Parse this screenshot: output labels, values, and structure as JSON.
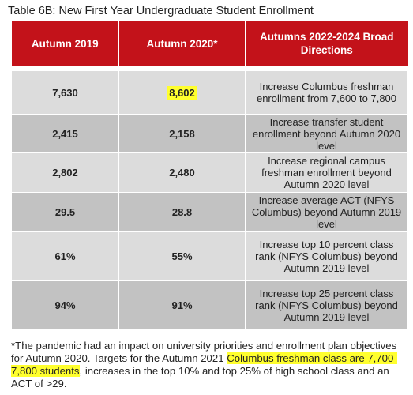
{
  "caption": "Table 6B: New First Year Undergraduate Student Enrollment",
  "table": {
    "headers": [
      "Autumn 2019",
      "Autumn 2020*",
      "Autumns 2022-2024 Broad Directions"
    ],
    "rows": [
      {
        "a2019": "7,630",
        "a2020": "8,602",
        "direction": "Increase Columbus freshman enrollment from 7,600 to 7,800"
      },
      {
        "a2019": "2,415",
        "a2020": "2,158",
        "direction": "Increase transfer student enrollment beyond Autumn 2020 level"
      },
      {
        "a2019": "2,802",
        "a2020": "2,480",
        "direction": "Increase regional campus freshman enrollment beyond Autumn 2020 level"
      },
      {
        "a2019": "29.5",
        "a2020": "28.8",
        "direction": "Increase average ACT (NFYS Columbus) beyond Autumn 2019 level"
      },
      {
        "a2019": "61%",
        "a2020": "55%",
        "direction": "Increase top 10 percent class rank (NFYS Columbus) beyond Autumn 2019 level"
      },
      {
        "a2019": "94%",
        "a2020": "91%",
        "direction": "Increase top 25 percent class rank (NFYS Columbus) beyond Autumn 2019 level"
      }
    ]
  },
  "footnote": {
    "part1": "*The pandemic had an impact on university priorities and enrollment plan objectives for Autumn 2020. Targets for the Autumn 2021 ",
    "highlight": "Columbus freshman class are 7,700-7,800 students",
    "part2": ", increases in the top 10% and top 25% of high school class and an ACT of >29."
  },
  "colors": {
    "header_bg": "#c3121a",
    "row_light": "#dcdcdc",
    "row_dark": "#c2c2c2",
    "highlight": "#ffff2e"
  }
}
